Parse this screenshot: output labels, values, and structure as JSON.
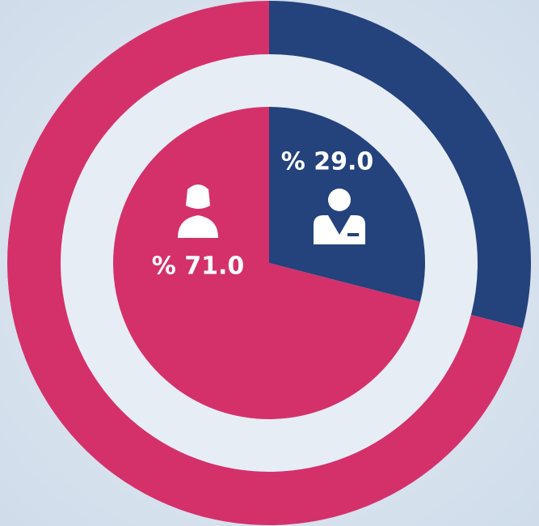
{
  "chart_data": {
    "type": "pie",
    "values": [
      29.0,
      71.0
    ],
    "value_labels": [
      "% 29.0",
      "% 71.0"
    ],
    "colors": [
      "#24427c",
      "#d4316b"
    ]
  }
}
